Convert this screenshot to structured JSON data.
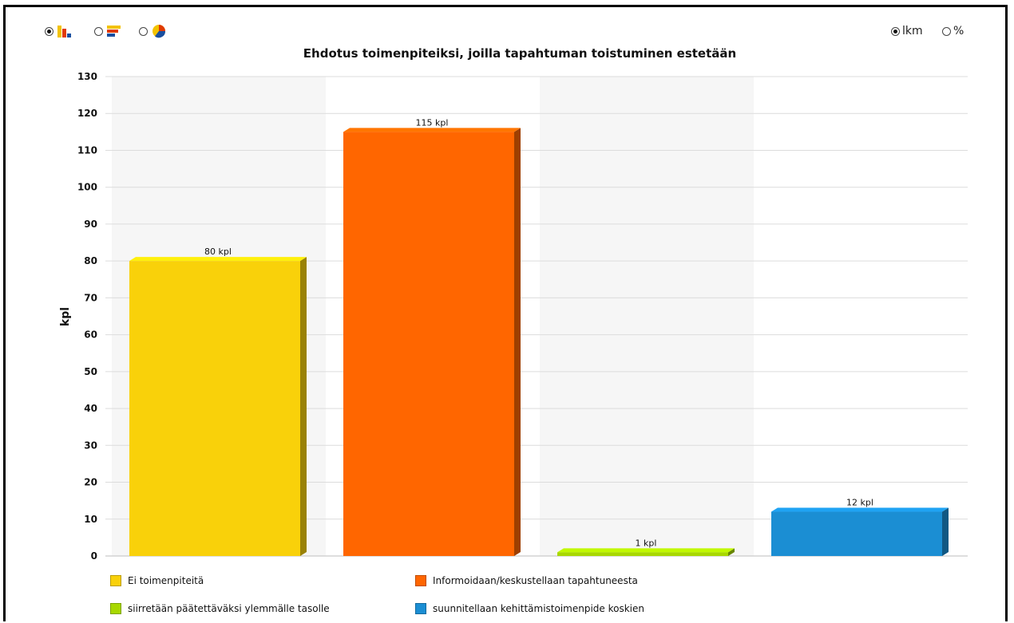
{
  "controls": {
    "chart_types": [
      {
        "icon": "bar-chart-icon",
        "selected": true
      },
      {
        "icon": "horizontal-bar-chart-icon",
        "selected": false
      },
      {
        "icon": "pie-chart-icon",
        "selected": false
      }
    ],
    "units": [
      {
        "label": "lkm",
        "selected": true
      },
      {
        "label": "%",
        "selected": false
      }
    ]
  },
  "chart_data": {
    "type": "bar",
    "title": "Ehdotus toimenpiteiksi, joilla tapahtuman toistuminen estetään",
    "xlabel": "",
    "ylabel": "kpl",
    "ylim": [
      0,
      130
    ],
    "ytick_step": 10,
    "categories": [
      "Ei toimenpiteitä",
      "Informoidaan/keskustellaan tapahtuneesta",
      "siirretään päätettäväksi ylemmälle tasolle",
      "suunnitellaan kehittämistoimenpide koskien"
    ],
    "values": [
      80,
      115,
      1,
      12
    ],
    "data_labels": [
      "80 kpl",
      "115 kpl",
      "1 kpl",
      "12 kpl"
    ],
    "colors": [
      "#f9d10a",
      "#ff6600",
      "#a8d800",
      "#1b8ed3"
    ],
    "grid": true,
    "legend_position": "bottom"
  }
}
